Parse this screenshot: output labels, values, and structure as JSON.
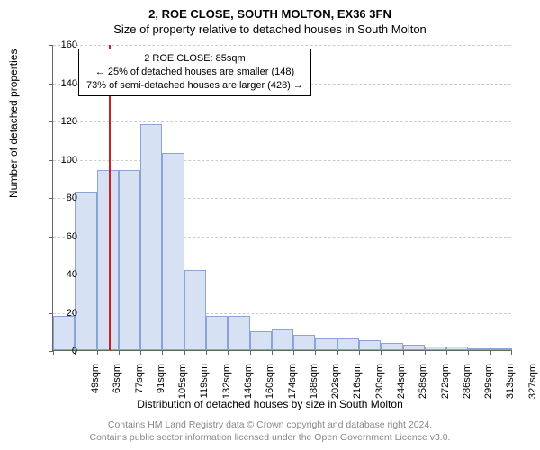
{
  "header": {
    "title": "2, ROE CLOSE, SOUTH MOLTON, EX36 3FN",
    "subtitle": "Size of property relative to detached houses in South Molton"
  },
  "chart": {
    "type": "histogram",
    "ylabel": "Number of detached properties",
    "xlabel": "Distribution of detached houses by size in South Molton",
    "ylim_max": 160,
    "ytick_step": 20,
    "yticks": [
      0,
      20,
      40,
      60,
      80,
      100,
      120,
      140,
      160
    ],
    "bar_fill": "#d6e1f3",
    "bar_stroke": "#8aa4d6",
    "grid_color": "#cccccc",
    "marker_color": "#cc1f1f",
    "background": "#ffffff",
    "label_fontsize": 12,
    "tick_fontsize": 11,
    "categories": [
      "49sqm",
      "63sqm",
      "77sqm",
      "91sqm",
      "105sqm",
      "119sqm",
      "132sqm",
      "146sqm",
      "160sqm",
      "174sqm",
      "188sqm",
      "202sqm",
      "216sqm",
      "230sqm",
      "244sqm",
      "258sqm",
      "272sqm",
      "286sqm",
      "299sqm",
      "313sqm",
      "327sqm"
    ],
    "values": [
      18,
      83,
      94,
      94,
      118,
      103,
      42,
      18,
      18,
      10,
      11,
      8,
      6,
      6,
      5,
      4,
      3,
      2,
      2,
      0,
      0
    ],
    "marker_bin_index": 2,
    "marker_fraction_in_bin": 0.57,
    "info_box": {
      "line1": "2 ROE CLOSE: 85sqm",
      "line2": "← 25% of detached houses are smaller (148)",
      "line3": "73% of semi-detached houses are larger (428) →"
    }
  },
  "footer": {
    "line1": "Contains HM Land Registry data © Crown copyright and database right 2024.",
    "line2": "Contains public sector information licensed under the Open Government Licence v3.0."
  }
}
